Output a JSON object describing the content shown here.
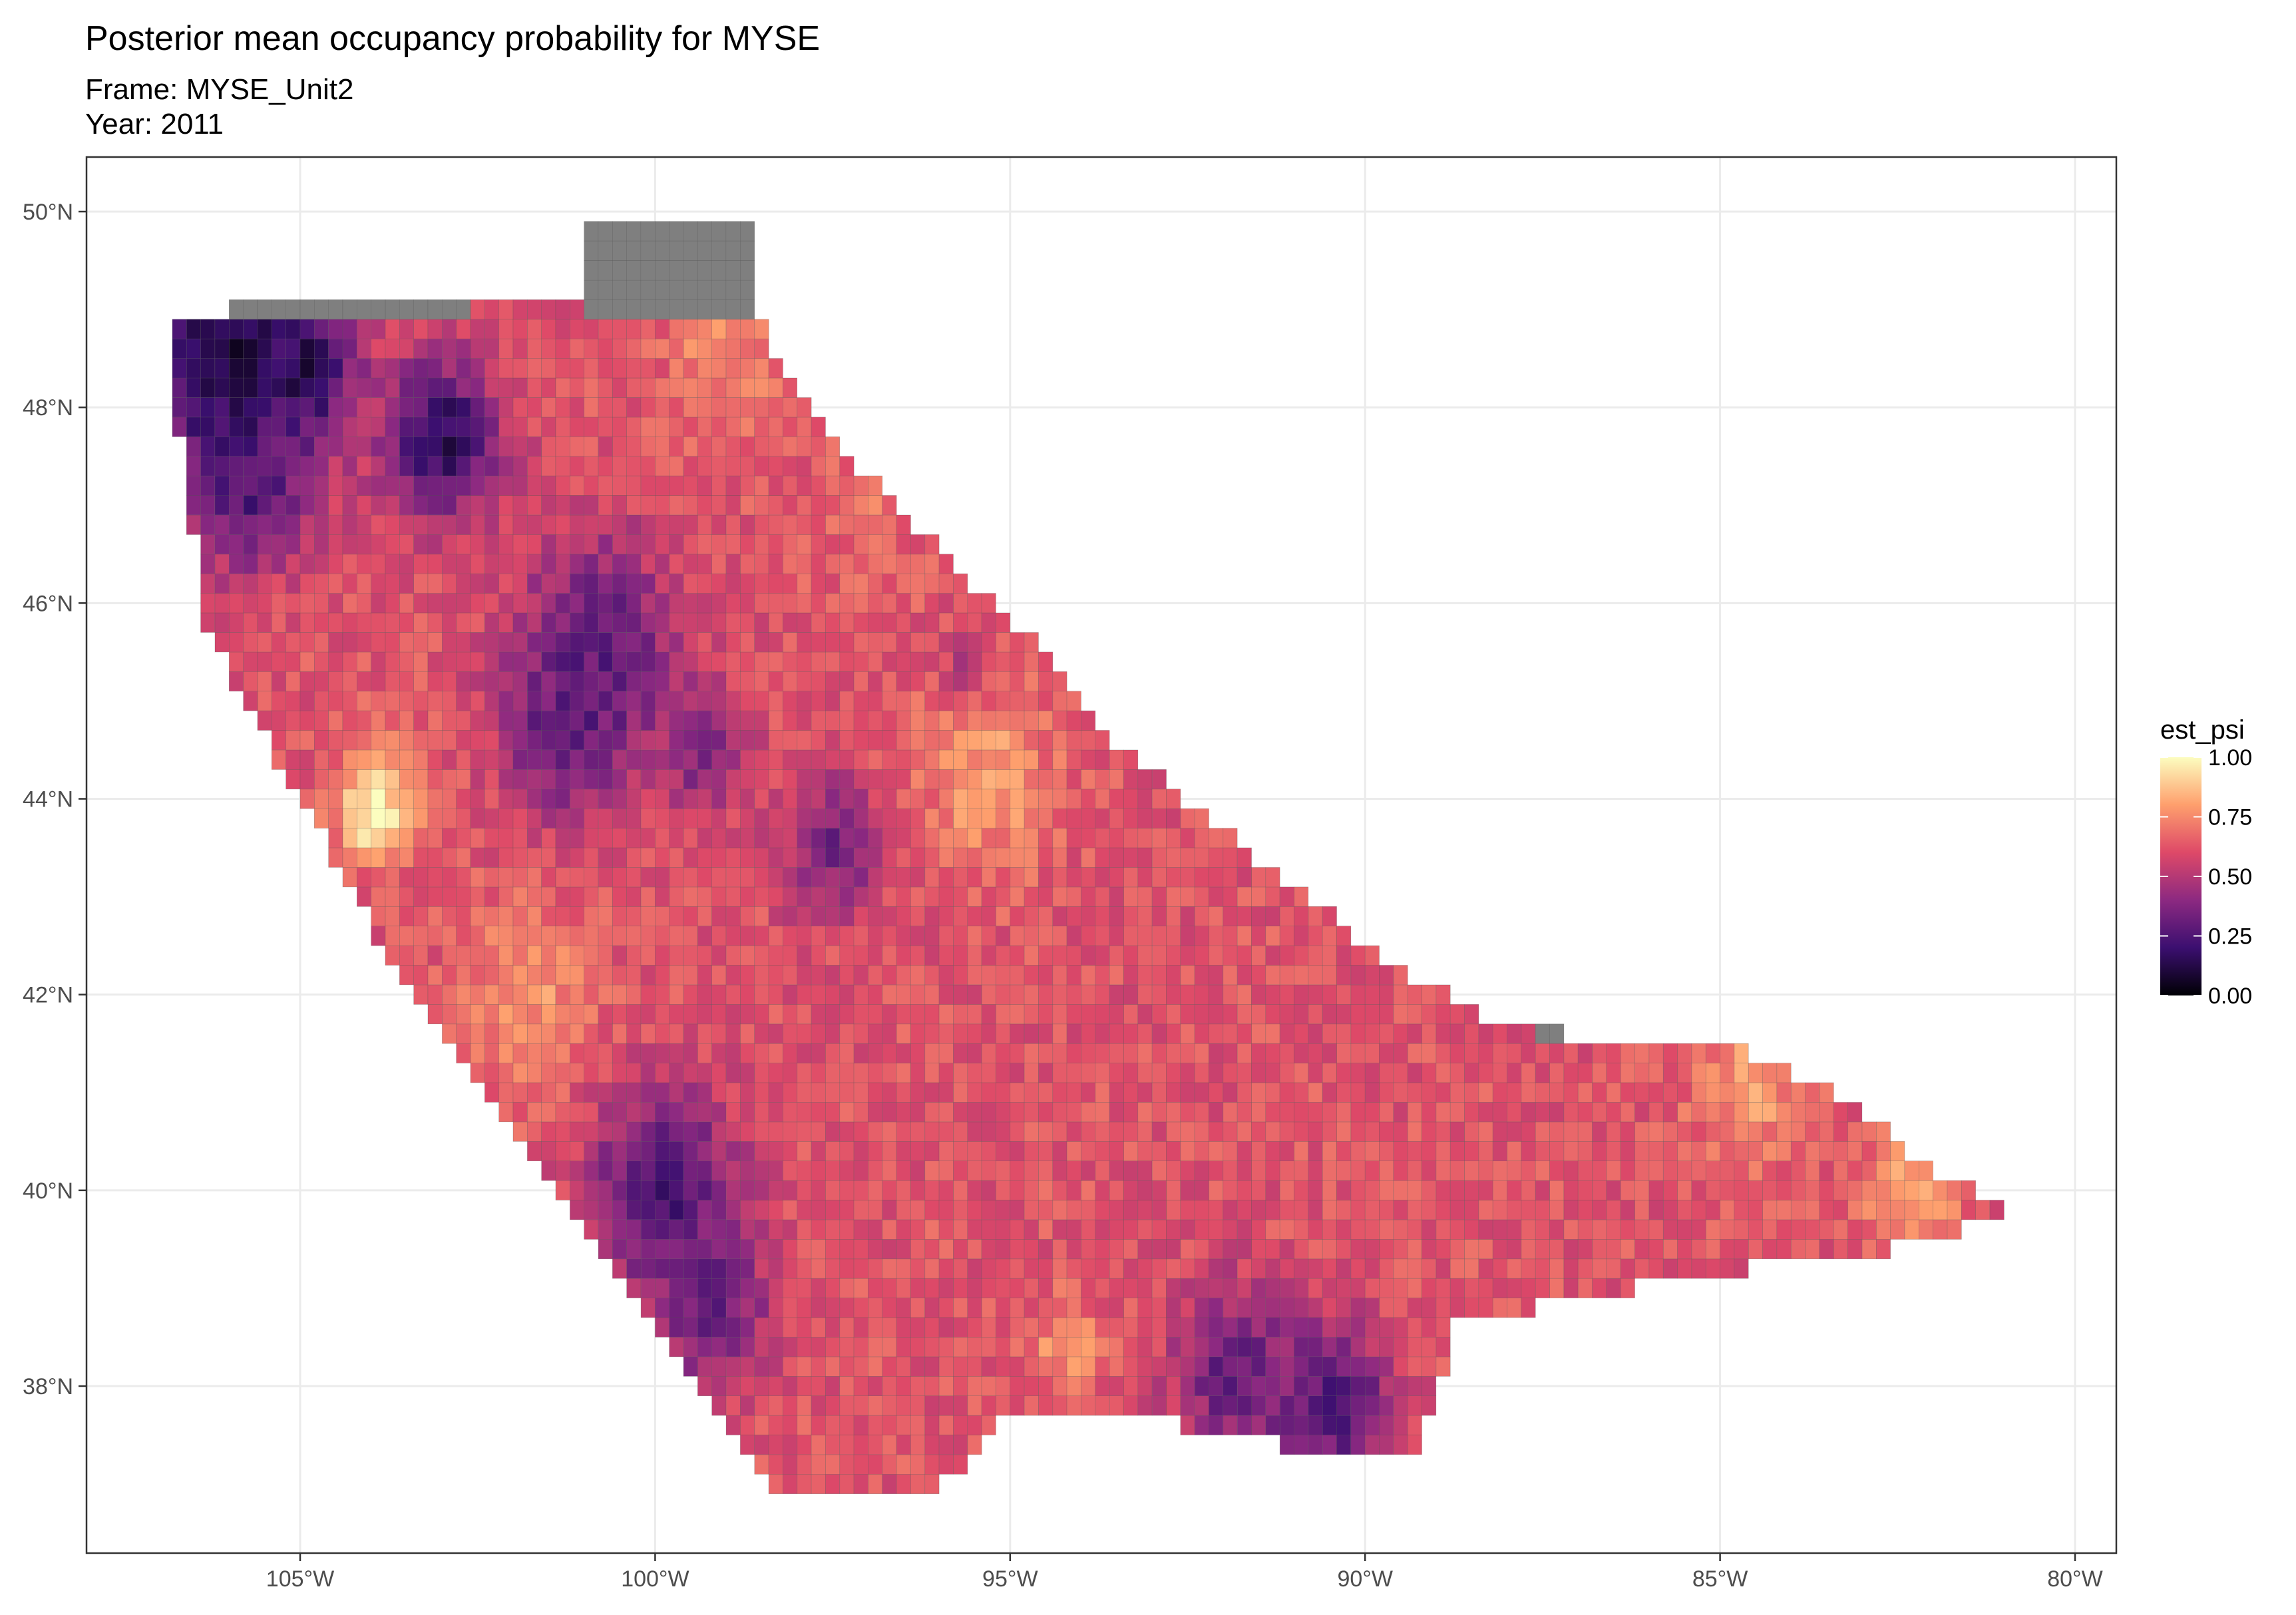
{
  "title": "Posterior mean occupancy probability for MYSE",
  "subtitle_frame": "Frame: MYSE_Unit2",
  "subtitle_year": "Year: 2011",
  "legend": {
    "title": "est_psi",
    "ticks": [
      "1.00",
      "0.75",
      "0.50",
      "0.25",
      "0.00"
    ],
    "scale": "magma",
    "colors": [
      "#000004",
      "#3b0f70",
      "#8c2981",
      "#de4968",
      "#fe9f6d",
      "#fcfdbf"
    ]
  },
  "missing_color": "#7f7f7f",
  "cell_border_color": "#555555",
  "chart_data": {
    "type": "heatmap",
    "projection": "lon/lat grid",
    "fill_variable": "est_psi",
    "xlim": [
      -108,
      -79.5
    ],
    "ylim": [
      36.5,
      50.5
    ],
    "x_ticks": [
      {
        "value": -105,
        "label": "105°W"
      },
      {
        "value": -100,
        "label": "100°W"
      },
      {
        "value": -95,
        "label": "95°W"
      },
      {
        "value": -90,
        "label": "90°W"
      },
      {
        "value": -85,
        "label": "85°W"
      },
      {
        "value": -80,
        "label": "80°W"
      }
    ],
    "y_ticks": [
      {
        "value": 50,
        "label": "50°N"
      },
      {
        "value": 48,
        "label": "48°N"
      },
      {
        "value": 46,
        "label": "46°N"
      },
      {
        "value": 44,
        "label": "44°N"
      },
      {
        "value": 42,
        "label": "42°N"
      },
      {
        "value": 40,
        "label": "40°N"
      },
      {
        "value": 38,
        "label": "38°N"
      }
    ],
    "grid": true,
    "legend_position": "right",
    "cell_size_deg": 0.2,
    "region_outline": [
      [
        -106.7,
        49.0
      ],
      [
        -104.5,
        49.0
      ],
      [
        -102.5,
        49.1
      ],
      [
        -101.0,
        49.2
      ],
      [
        -100.7,
        49.6
      ],
      [
        -100.4,
        49.9
      ],
      [
        -100.0,
        49.8
      ],
      [
        -99.6,
        49.5
      ],
      [
        -99.0,
        49.2
      ],
      [
        -98.6,
        49.0
      ],
      [
        -98.2,
        48.4
      ],
      [
        -97.6,
        47.8
      ],
      [
        -96.6,
        47.0
      ],
      [
        -95.8,
        46.4
      ],
      [
        -94.8,
        45.7
      ],
      [
        -93.5,
        44.6
      ],
      [
        -92.2,
        43.8
      ],
      [
        -91.0,
        43.1
      ],
      [
        -89.8,
        42.4
      ],
      [
        -88.2,
        41.7
      ],
      [
        -86.3,
        41.5
      ],
      [
        -84.9,
        41.5
      ],
      [
        -83.3,
        41.0
      ],
      [
        -82.2,
        40.3
      ],
      [
        -80.9,
        39.8
      ],
      [
        -81.8,
        39.5
      ],
      [
        -83.5,
        39.3
      ],
      [
        -85.6,
        39.1
      ],
      [
        -87.6,
        38.8
      ],
      [
        -88.7,
        38.6
      ],
      [
        -89.0,
        37.9
      ],
      [
        -89.3,
        37.3
      ],
      [
        -90.0,
        37.2
      ],
      [
        -91.2,
        37.4
      ],
      [
        -93.2,
        37.7
      ],
      [
        -94.1,
        37.6
      ],
      [
        -95.1,
        37.7
      ],
      [
        -95.9,
        37.0
      ],
      [
        -97.0,
        37.0
      ],
      [
        -98.3,
        37.0
      ],
      [
        -99.0,
        37.7
      ],
      [
        -99.7,
        38.3
      ],
      [
        -100.6,
        39.2
      ],
      [
        -101.6,
        40.3
      ],
      [
        -102.8,
        41.5
      ],
      [
        -104.0,
        42.7
      ],
      [
        -104.9,
        43.9
      ],
      [
        -105.8,
        45.0
      ],
      [
        -106.3,
        45.8
      ],
      [
        -106.5,
        46.7
      ],
      [
        -106.7,
        47.8
      ]
    ],
    "missing_zones": [
      {
        "lon": [
          -101.0,
          -98.6
        ],
        "lat": [
          49.0,
          49.9
        ]
      },
      {
        "lon": [
          -106.0,
          -102.5
        ],
        "lat": [
          48.85,
          49.1
        ]
      },
      {
        "lon": [
          -87.5,
          -87.1
        ],
        "lat": [
          41.55,
          41.75
        ]
      }
    ],
    "blobs": [
      {
        "lon": -106.0,
        "lat": 48.4,
        "r": 1.3,
        "v": 0.08
      },
      {
        "lon": -104.9,
        "lat": 48.4,
        "r": 0.6,
        "v": 0.12
      },
      {
        "lon": -105.7,
        "lat": 47.2,
        "r": 0.8,
        "v": 0.25
      },
      {
        "lon": -103.0,
        "lat": 47.7,
        "r": 0.8,
        "v": 0.15
      },
      {
        "lon": -100.8,
        "lat": 45.6,
        "r": 1.1,
        "v": 0.3
      },
      {
        "lon": -101.2,
        "lat": 44.7,
        "r": 0.9,
        "v": 0.28
      },
      {
        "lon": -99.3,
        "lat": 44.5,
        "r": 0.6,
        "v": 0.35
      },
      {
        "lon": -97.5,
        "lat": 43.5,
        "r": 0.7,
        "v": 0.35
      },
      {
        "lon": -99.9,
        "lat": 40.0,
        "r": 1.0,
        "v": 0.2
      },
      {
        "lon": -99.2,
        "lat": 38.8,
        "r": 0.8,
        "v": 0.3
      },
      {
        "lon": -91.8,
        "lat": 38.1,
        "r": 0.9,
        "v": 0.3
      },
      {
        "lon": -90.4,
        "lat": 37.8,
        "r": 0.8,
        "v": 0.25
      },
      {
        "lon": -95.6,
        "lat": 45.3,
        "r": 0.3,
        "v": 0.4
      },
      {
        "lon": -103.9,
        "lat": 44.0,
        "r": 0.6,
        "v": 0.92
      },
      {
        "lon": -104.0,
        "lat": 43.8,
        "r": 0.3,
        "v": 1.0
      },
      {
        "lon": -101.8,
        "lat": 41.9,
        "r": 0.9,
        "v": 0.78
      },
      {
        "lon": -95.3,
        "lat": 44.2,
        "r": 0.9,
        "v": 0.8
      },
      {
        "lon": -94.2,
        "lat": 38.4,
        "r": 0.5,
        "v": 0.78
      },
      {
        "lon": -84.6,
        "lat": 41.1,
        "r": 0.8,
        "v": 0.8
      },
      {
        "lon": -82.3,
        "lat": 40.0,
        "r": 0.6,
        "v": 0.85
      },
      {
        "lon": -99.0,
        "lat": 48.6,
        "r": 0.8,
        "v": 0.75
      },
      {
        "lon": -97.0,
        "lat": 47.0,
        "r": 0.7,
        "v": 0.7
      }
    ]
  }
}
